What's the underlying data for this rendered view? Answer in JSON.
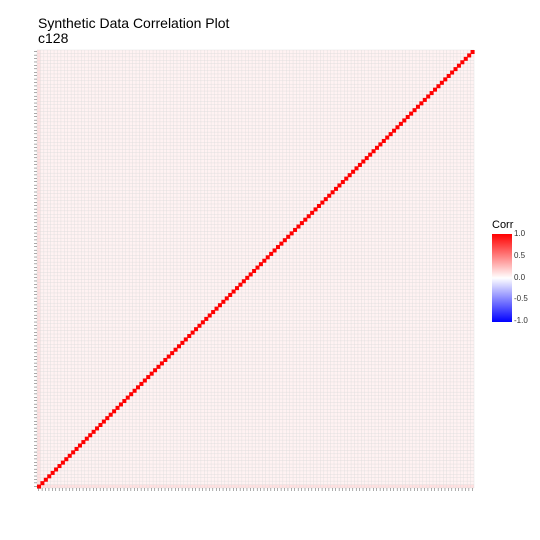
{
  "chart_data": {
    "type": "heatmap",
    "title": "Synthetic Data Correlation Plot",
    "subtitle": "c128",
    "legend": {
      "title": "Corr",
      "position": "right",
      "scale": [
        -1.0,
        1.0
      ],
      "ticks": [
        "1.0",
        "0.5",
        "0.0",
        "-0.5",
        "-1.0"
      ],
      "colors": {
        "low": "#0000ff",
        "mid": "#ffffff",
        "high": "#ff0000"
      }
    },
    "grid": true,
    "variables_count": 128,
    "diagonal_value": 1.0,
    "off_diagonal_value_approx": 0.05,
    "edge_variable_correlation_approx": 0.12
  }
}
